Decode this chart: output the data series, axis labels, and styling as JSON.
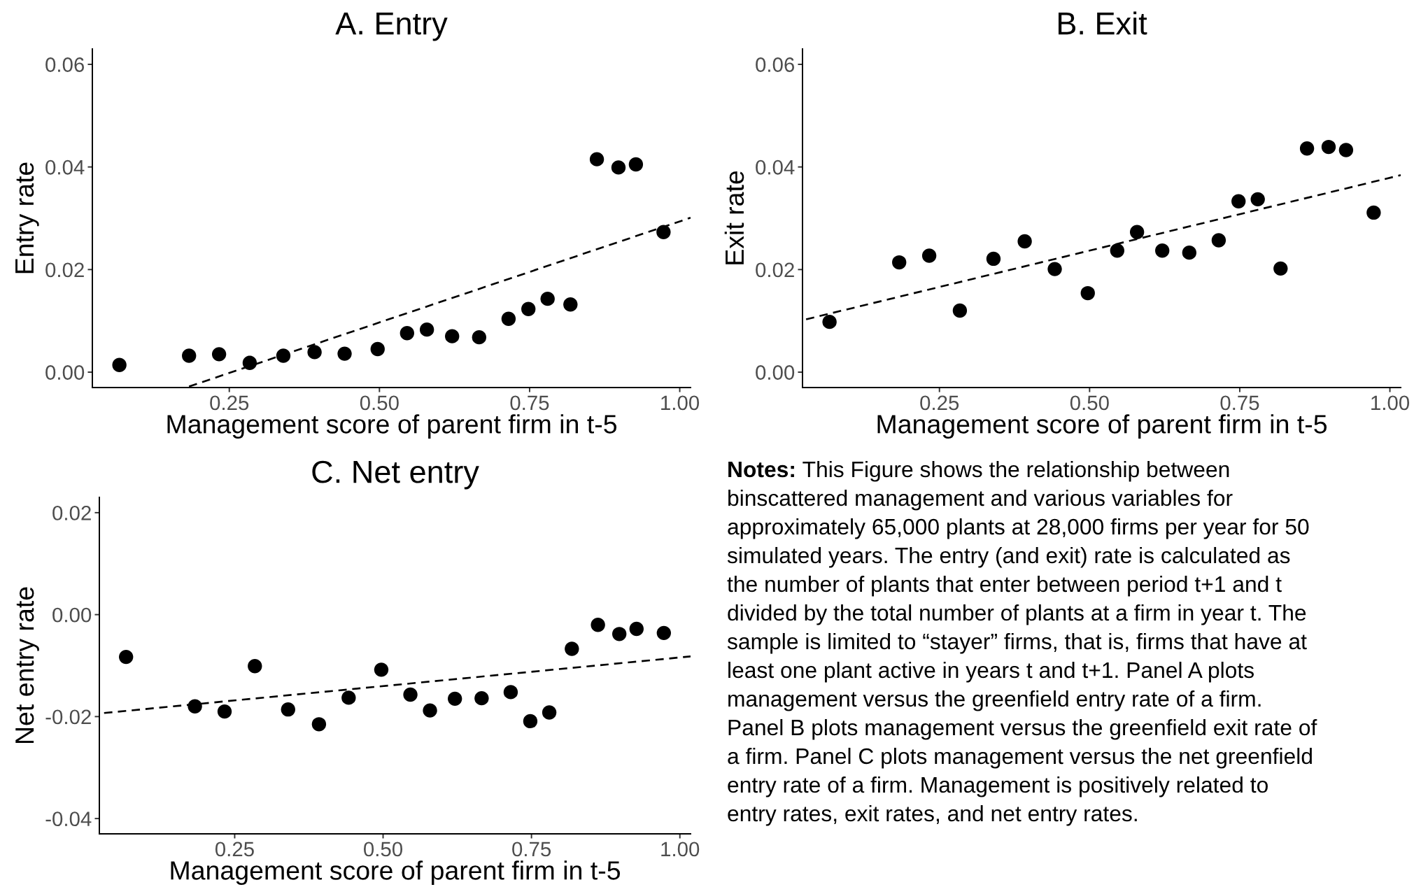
{
  "chart_data": [
    {
      "type": "scatter",
      "title": "A. Entry",
      "xlabel": "Management score of parent firm in t-5",
      "ylabel": "Entry rate",
      "x": [
        0.067,
        0.183,
        0.233,
        0.284,
        0.34,
        0.392,
        0.442,
        0.497,
        0.546,
        0.579,
        0.621,
        0.666,
        0.715,
        0.748,
        0.78,
        0.818,
        0.862,
        0.898,
        0.927,
        0.973
      ],
      "series": [
        {
          "type": "scatter",
          "color": "#000000",
          "marker": "circle",
          "values": [
            0.0014,
            0.0032,
            0.0035,
            0.0018,
            0.0032,
            0.0039,
            0.0036,
            0.0045,
            0.0076,
            0.0083,
            0.007,
            0.0068,
            0.0104,
            0.0123,
            0.0143,
            0.0132,
            0.0415,
            0.0399,
            0.0405,
            0.0273
          ]
        },
        {
          "type": "line",
          "color": "#000000",
          "line_style": "dashed",
          "x": [
            0.183,
            1.018
          ],
          "values": [
            -0.0028,
            0.0301
          ]
        }
      ],
      "xlim": [
        0.022,
        1.018
      ],
      "ylim": [
        -0.003,
        0.063
      ],
      "xticks": [
        {
          "value": 0.25,
          "label": "0.25"
        },
        {
          "value": 0.5,
          "label": "0.50"
        },
        {
          "value": 0.75,
          "label": "0.75"
        },
        {
          "value": 1.0,
          "label": "1.00"
        }
      ],
      "yticks": [
        {
          "value": 0,
          "label": "0.00"
        },
        {
          "value": 0.02,
          "label": "0.02"
        },
        {
          "value": 0.04,
          "label": "0.04"
        },
        {
          "value": 0.06,
          "label": "0.06"
        }
      ]
    },
    {
      "type": "scatter",
      "title": "B. Exit",
      "xlabel": "Management score of parent firm in t-5",
      "ylabel": "Exit rate",
      "x": [
        0.067,
        0.183,
        0.233,
        0.284,
        0.34,
        0.392,
        0.442,
        0.497,
        0.546,
        0.579,
        0.621,
        0.666,
        0.715,
        0.748,
        0.78,
        0.818,
        0.862,
        0.898,
        0.927,
        0.973
      ],
      "series": [
        {
          "type": "scatter",
          "color": "#000000",
          "marker": "circle",
          "values": [
            0.0098,
            0.0214,
            0.0227,
            0.012,
            0.0221,
            0.0255,
            0.0201,
            0.0154,
            0.0237,
            0.0273,
            0.0237,
            0.0233,
            0.0257,
            0.0333,
            0.0337,
            0.0202,
            0.0436,
            0.0439,
            0.0433,
            0.0311
          ]
        },
        {
          "type": "line",
          "color": "#000000",
          "line_style": "dashed",
          "x": [
            0.028,
            1.018
          ],
          "values": [
            0.0103,
            0.0384
          ]
        }
      ],
      "xlim": [
        0.022,
        1.018
      ],
      "ylim": [
        -0.003,
        0.063
      ],
      "xticks": [
        {
          "value": 0.25,
          "label": "0.25"
        },
        {
          "value": 0.5,
          "label": "0.50"
        },
        {
          "value": 0.75,
          "label": "0.75"
        },
        {
          "value": 1.0,
          "label": "1.00"
        }
      ],
      "yticks": [
        {
          "value": 0,
          "label": "0.00"
        },
        {
          "value": 0.02,
          "label": "0.02"
        },
        {
          "value": 0.04,
          "label": "0.04"
        },
        {
          "value": 0.06,
          "label": "0.06"
        }
      ]
    },
    {
      "type": "scatter",
      "title": "C. Net entry",
      "xlabel": "Management score of parent firm in t-5",
      "ylabel": "Net entry rate",
      "x": [
        0.067,
        0.183,
        0.233,
        0.284,
        0.34,
        0.392,
        0.442,
        0.497,
        0.546,
        0.579,
        0.621,
        0.666,
        0.715,
        0.748,
        0.78,
        0.818,
        0.862,
        0.898,
        0.927,
        0.973
      ],
      "series": [
        {
          "type": "scatter",
          "color": "#000000",
          "marker": "circle",
          "values": [
            -0.0083,
            -0.018,
            -0.019,
            -0.0101,
            -0.0186,
            -0.0215,
            -0.0163,
            -0.0108,
            -0.0157,
            -0.0188,
            -0.0165,
            -0.0164,
            -0.0152,
            -0.0209,
            -0.0192,
            -0.0067,
            -0.002,
            -0.0038,
            -0.0028,
            -0.0036
          ]
        },
        {
          "type": "line",
          "color": "#000000",
          "line_style": "dashed",
          "x": [
            0.03,
            1.018
          ],
          "values": [
            -0.0193,
            -0.0082
          ]
        }
      ],
      "xlim": [
        0.022,
        1.018
      ],
      "ylim": [
        -0.043,
        0.023
      ],
      "xticks": [
        {
          "value": 0.25,
          "label": "0.25"
        },
        {
          "value": 0.5,
          "label": "0.50"
        },
        {
          "value": 0.75,
          "label": "0.75"
        },
        {
          "value": 1.0,
          "label": "1.00"
        }
      ],
      "yticks": [
        {
          "value": -0.04,
          "label": "-0.04"
        },
        {
          "value": -0.02,
          "label": "-0.02"
        },
        {
          "value": 0,
          "label": "0.00"
        },
        {
          "value": 0.02,
          "label": "0.02"
        }
      ]
    },
    {
      "type": "other",
      "annotations": [
        "Notes: This Figure shows the relationship between binscattered management and various variables for approximately 65,000 plants at 28,000 firms per year for 50 simulated years. The entry (and exit) rate is calculated as the number of plants that enter between period t+1 and t divided by the total number of plants at a firm in year t. The sample is limited to “stayer” firms, that is, firms that have at least one plant active in years t and t+1. Panel A plots management versus the greenfield entry rate of a firm. Panel B plots management versus the greenfield exit rate of a firm. Panel C plots management versus the net greenfield entry rate of a firm. Management is positively related to entry rates, exit rates, and net entry rates."
      ]
    }
  ]
}
